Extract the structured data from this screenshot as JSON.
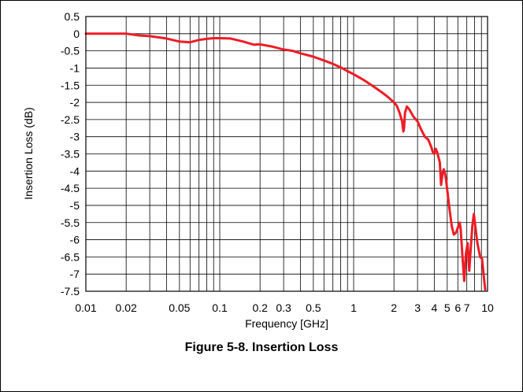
{
  "figure": {
    "caption": "Figure 5-8. Insertion Loss"
  },
  "chart_data": {
    "type": "line",
    "xlabel": "Frequency [GHz]",
    "ylabel": "Insertion Loss (dB)",
    "x_scale": "log",
    "xlim": [
      0.01,
      10
    ],
    "ylim": [
      -7.5,
      0.5
    ],
    "grid": true,
    "x_ticks": [
      {
        "value": 0.01,
        "label": "0.01"
      },
      {
        "value": 0.02,
        "label": "0.02"
      },
      {
        "value": 0.05,
        "label": "0.05"
      },
      {
        "value": 0.1,
        "label": "0.1"
      },
      {
        "value": 0.2,
        "label": "0.2"
      },
      {
        "value": 0.3,
        "label": "0.3"
      },
      {
        "value": 0.5,
        "label": "0.5"
      },
      {
        "value": 1,
        "label": "1"
      },
      {
        "value": 2,
        "label": "2"
      },
      {
        "value": 3,
        "label": "3"
      },
      {
        "value": 4,
        "label": "4"
      },
      {
        "value": 5,
        "label": "5"
      },
      {
        "value": 6,
        "label": "6"
      },
      {
        "value": 7,
        "label": "7"
      },
      {
        "value": 10,
        "label": "10"
      }
    ],
    "y_ticks": [
      {
        "value": 0.5,
        "label": "0.5"
      },
      {
        "value": 0,
        "label": "0"
      },
      {
        "value": -0.5,
        "label": "-0.5"
      },
      {
        "value": -1,
        "label": "-1"
      },
      {
        "value": -1.5,
        "label": "-1.5"
      },
      {
        "value": -2,
        "label": "-2"
      },
      {
        "value": -2.5,
        "label": "-2.5"
      },
      {
        "value": -3,
        "label": "-3"
      },
      {
        "value": -3.5,
        "label": "-3.5"
      },
      {
        "value": -4,
        "label": "-4"
      },
      {
        "value": -4.5,
        "label": "-4.5"
      },
      {
        "value": -5,
        "label": "-5"
      },
      {
        "value": -5.5,
        "label": "-5.5"
      },
      {
        "value": -6,
        "label": "-6"
      },
      {
        "value": -6.5,
        "label": "-6.5"
      },
      {
        "value": -7,
        "label": "-7"
      },
      {
        "value": -7.5,
        "label": "-7.5"
      }
    ],
    "series": [
      {
        "color": "#ee1c25",
        "points": [
          [
            0.01,
            0.0
          ],
          [
            0.015,
            0.0
          ],
          [
            0.02,
            0.0
          ],
          [
            0.025,
            -0.05
          ],
          [
            0.03,
            -0.07
          ],
          [
            0.04,
            -0.14
          ],
          [
            0.05,
            -0.23
          ],
          [
            0.06,
            -0.25
          ],
          [
            0.07,
            -0.18
          ],
          [
            0.08,
            -0.15
          ],
          [
            0.09,
            -0.13
          ],
          [
            0.1,
            -0.13
          ],
          [
            0.12,
            -0.14
          ],
          [
            0.15,
            -0.23
          ],
          [
            0.18,
            -0.32
          ],
          [
            0.2,
            -0.31
          ],
          [
            0.25,
            -0.38
          ],
          [
            0.3,
            -0.46
          ],
          [
            0.35,
            -0.5
          ],
          [
            0.4,
            -0.57
          ],
          [
            0.5,
            -0.67
          ],
          [
            0.6,
            -0.78
          ],
          [
            0.7,
            -0.88
          ],
          [
            0.8,
            -0.98
          ],
          [
            0.9,
            -1.09
          ],
          [
            1.0,
            -1.18
          ],
          [
            1.2,
            -1.36
          ],
          [
            1.4,
            -1.53
          ],
          [
            1.6,
            -1.69
          ],
          [
            1.8,
            -1.84
          ],
          [
            2.0,
            -2.0
          ],
          [
            2.1,
            -2.1
          ],
          [
            2.2,
            -2.3
          ],
          [
            2.3,
            -2.55
          ],
          [
            2.35,
            -2.85
          ],
          [
            2.38,
            -2.75
          ],
          [
            2.42,
            -2.3
          ],
          [
            2.5,
            -2.12
          ],
          [
            2.6,
            -2.2
          ],
          [
            2.8,
            -2.42
          ],
          [
            3.0,
            -2.55
          ],
          [
            3.2,
            -2.8
          ],
          [
            3.4,
            -3.0
          ],
          [
            3.6,
            -3.08
          ],
          [
            3.8,
            -3.3
          ],
          [
            3.9,
            -3.45
          ],
          [
            4.0,
            -3.5
          ],
          [
            4.1,
            -3.35
          ],
          [
            4.2,
            -3.45
          ],
          [
            4.3,
            -3.6
          ],
          [
            4.4,
            -3.75
          ],
          [
            4.5,
            -4.4
          ],
          [
            4.6,
            -4.1
          ],
          [
            4.7,
            -3.95
          ],
          [
            4.8,
            -4.05
          ],
          [
            4.9,
            -4.25
          ],
          [
            5.0,
            -4.55
          ],
          [
            5.2,
            -5.1
          ],
          [
            5.4,
            -5.6
          ],
          [
            5.6,
            -5.85
          ],
          [
            5.8,
            -5.8
          ],
          [
            6.0,
            -5.65
          ],
          [
            6.2,
            -5.5
          ],
          [
            6.3,
            -5.7
          ],
          [
            6.5,
            -6.5
          ],
          [
            6.7,
            -7.2
          ],
          [
            6.9,
            -6.4
          ],
          [
            7.1,
            -6.1
          ],
          [
            7.3,
            -6.9
          ],
          [
            7.5,
            -6.2
          ],
          [
            7.7,
            -5.6
          ],
          [
            7.9,
            -5.25
          ],
          [
            8.1,
            -5.6
          ],
          [
            8.4,
            -6.1
          ],
          [
            8.8,
            -6.5
          ],
          [
            9.1,
            -6.55
          ],
          [
            9.4,
            -7.1
          ],
          [
            9.6,
            -7.45
          ]
        ]
      }
    ]
  }
}
